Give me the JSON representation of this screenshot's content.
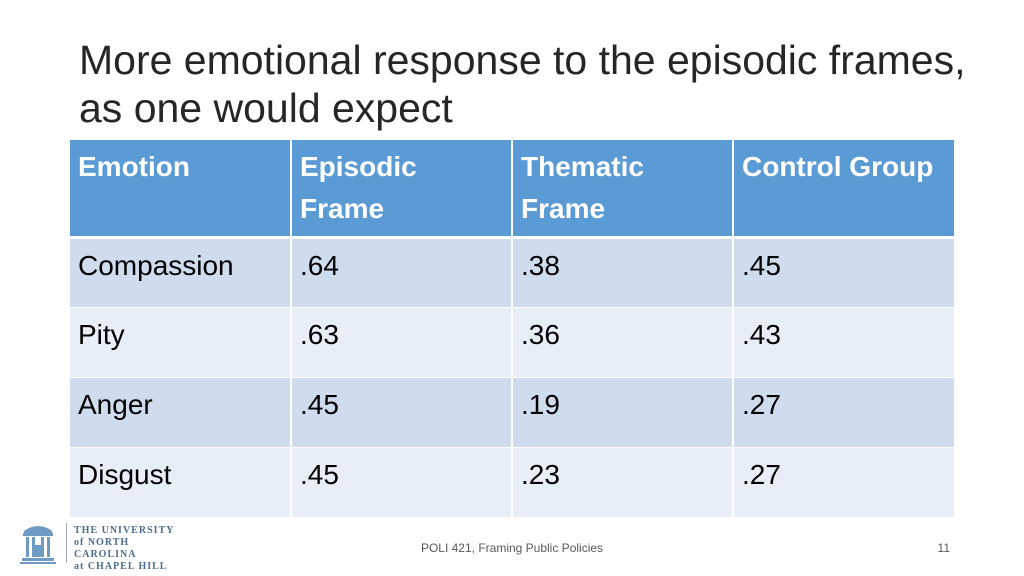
{
  "slide": {
    "title": "More emotional response to the episodic frames, as one would expect",
    "footer": "POLI 421, Framing Public Policies",
    "page_number": "11"
  },
  "table": {
    "headers": [
      "Emotion",
      "Episodic Frame",
      "Thematic Frame",
      "Control Group"
    ],
    "rows": [
      [
        "Compassion",
        ".64",
        ".38",
        ".45"
      ],
      [
        "Pity",
        ".63",
        ".36",
        ".43"
      ],
      [
        "Anger",
        ".45",
        ".19",
        ".27"
      ],
      [
        "Disgust",
        ".45",
        ".23",
        ".27"
      ]
    ]
  },
  "logo": {
    "line1": "THE UNIVERSITY",
    "line2": "of NORTH CAROLINA",
    "line3": "at CHAPEL HILL",
    "icon": "old-well-icon"
  },
  "colors": {
    "header_bg": "#5b9bd5",
    "row_odd": "#cfdcee",
    "row_even": "#e8eef7",
    "logo_blue": "#4b6e8f"
  }
}
